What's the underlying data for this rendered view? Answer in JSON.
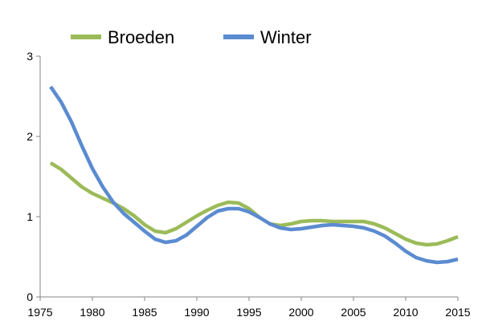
{
  "chart_data": {
    "type": "line",
    "title": "",
    "xlabel": "",
    "ylabel": "",
    "xlim": [
      1975,
      2015
    ],
    "ylim": [
      0,
      3
    ],
    "x_ticks": [
      1975,
      1980,
      1985,
      1990,
      1995,
      2000,
      2005,
      2010,
      2015
    ],
    "y_ticks": [
      0,
      1,
      2,
      3
    ],
    "grid": false,
    "legend_position": "top",
    "x": [
      1976,
      1977,
      1978,
      1979,
      1980,
      1981,
      1982,
      1983,
      1984,
      1985,
      1986,
      1987,
      1988,
      1989,
      1990,
      1991,
      1992,
      1993,
      1994,
      1995,
      1996,
      1997,
      1998,
      1999,
      2000,
      2001,
      2002,
      2003,
      2004,
      2005,
      2006,
      2007,
      2008,
      2009,
      2010,
      2011,
      2012,
      2013,
      2014,
      2015
    ],
    "series": [
      {
        "name": "Broeden",
        "color": "#9BBB59",
        "values": [
          1.67,
          1.59,
          1.48,
          1.37,
          1.29,
          1.23,
          1.17,
          1.1,
          1.01,
          0.9,
          0.82,
          0.8,
          0.85,
          0.93,
          1.01,
          1.08,
          1.14,
          1.18,
          1.17,
          1.1,
          0.99,
          0.91,
          0.89,
          0.91,
          0.94,
          0.95,
          0.95,
          0.94,
          0.94,
          0.94,
          0.94,
          0.91,
          0.86,
          0.79,
          0.72,
          0.67,
          0.65,
          0.66,
          0.7,
          0.75
        ]
      },
      {
        "name": "Winter",
        "color": "#5B8BD0",
        "values": [
          2.62,
          2.43,
          2.18,
          1.88,
          1.6,
          1.37,
          1.18,
          1.04,
          0.93,
          0.82,
          0.72,
          0.68,
          0.7,
          0.77,
          0.88,
          0.99,
          1.07,
          1.1,
          1.1,
          1.06,
          0.99,
          0.91,
          0.86,
          0.84,
          0.85,
          0.87,
          0.89,
          0.9,
          0.89,
          0.88,
          0.86,
          0.82,
          0.76,
          0.67,
          0.57,
          0.49,
          0.45,
          0.43,
          0.44,
          0.47
        ]
      }
    ]
  }
}
